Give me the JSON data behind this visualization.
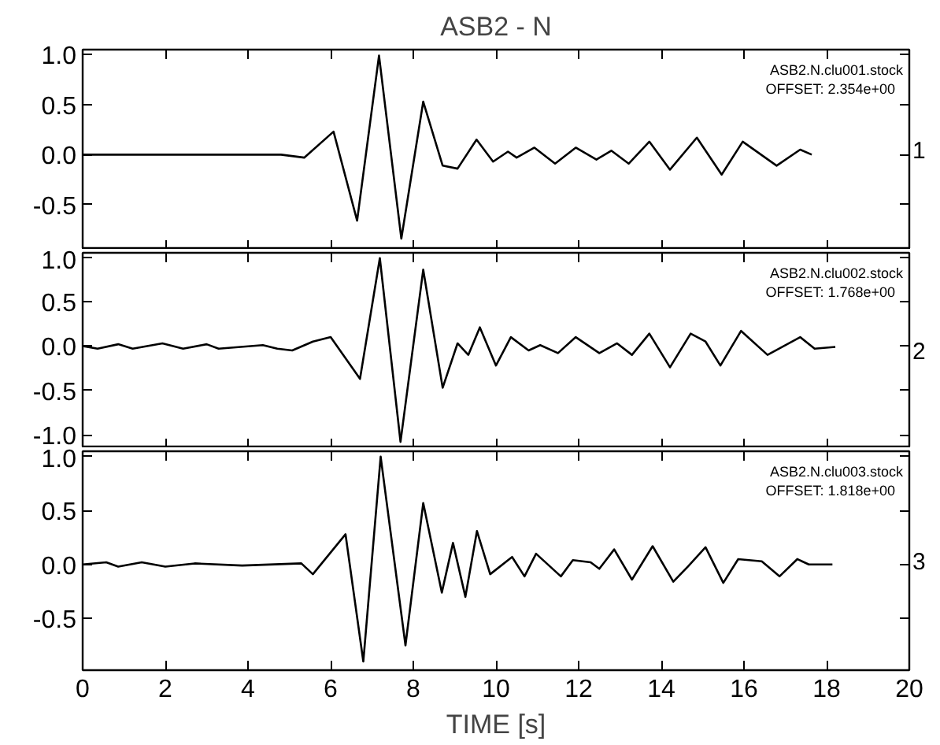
{
  "chart_data": [
    {
      "type": "line",
      "title": "ASB2 - N",
      "xlim": [
        0,
        20
      ],
      "ylim": [
        -0.95,
        1.05
      ],
      "xticks": [
        0,
        2,
        4,
        6,
        8,
        10,
        12,
        14,
        16,
        18,
        20
      ],
      "yticks": [
        {
          "value": -0.5,
          "label": "-0.5"
        },
        {
          "value": 0,
          "label": "0.0"
        },
        {
          "value": 0.5,
          "label": "0.5"
        },
        {
          "value": 1,
          "label": "1.0"
        }
      ],
      "tick_labels": "y",
      "grid": false,
      "annotations": [
        "ASB2.N.clu001.stock",
        "OFFSET:   2.354e+00",
        "1"
      ],
      "series": [
        {
          "color": "#000000",
          "x": [
            0,
            4.8,
            5.36,
            6.07,
            6.64,
            7.17,
            7.71,
            8.24,
            8.71,
            9.07,
            9.53,
            9.93,
            10.29,
            10.5,
            10.93,
            11.43,
            11.93,
            12.43,
            12.79,
            13.21,
            13.71,
            14.21,
            14.86,
            15.46,
            15.97,
            16.79,
            17.36,
            17.64
          ],
          "values": [
            0,
            0,
            -0.03,
            0.23,
            -0.66,
            0.99,
            -0.84,
            0.53,
            -0.11,
            -0.14,
            0.15,
            -0.07,
            0.03,
            -0.03,
            0.07,
            -0.09,
            0.07,
            -0.05,
            0.04,
            -0.09,
            0.13,
            -0.15,
            0.17,
            -0.2,
            0.13,
            -0.11,
            0.05,
            0
          ]
        }
      ]
    },
    {
      "type": "line",
      "xlim": [
        0,
        20
      ],
      "ylim": [
        -1.15,
        1.05
      ],
      "xticks": [
        0,
        2,
        4,
        6,
        8,
        10,
        12,
        14,
        16,
        18,
        20
      ],
      "yticks": [
        {
          "value": -1,
          "label": "-1.0"
        },
        {
          "value": -0.5,
          "label": "-0.5"
        },
        {
          "value": 0,
          "label": "0.0"
        },
        {
          "value": 0.5,
          "label": "0.5"
        },
        {
          "value": 1,
          "label": "1.0"
        }
      ],
      "tick_labels": "y",
      "grid": false,
      "annotations": [
        "ASB2.N.clu002.stock",
        "OFFSET:   1.768e+00",
        "2"
      ],
      "series": [
        {
          "color": "#000000",
          "x": [
            0,
            0.36,
            0.86,
            1.21,
            1.93,
            2.43,
            3.0,
            3.29,
            4.36,
            4.71,
            5.07,
            5.57,
            6.0,
            6.71,
            7.19,
            7.69,
            8.24,
            8.71,
            9.07,
            9.33,
            9.61,
            10.0,
            10.36,
            10.79,
            11.07,
            11.5,
            11.93,
            12.5,
            12.93,
            13.29,
            13.71,
            14.21,
            14.71,
            15.07,
            15.43,
            15.93,
            16.57,
            17.36,
            17.71,
            18.21
          ],
          "values": [
            0,
            -0.03,
            0.02,
            -0.03,
            0.03,
            -0.03,
            0.02,
            -0.03,
            0.01,
            -0.03,
            -0.05,
            0.05,
            0.1,
            -0.37,
            0.99,
            -1.08,
            0.86,
            -0.47,
            0.03,
            -0.1,
            0.21,
            -0.22,
            0.1,
            -0.05,
            0.01,
            -0.08,
            0.1,
            -0.08,
            0.03,
            -0.1,
            0.14,
            -0.24,
            0.14,
            0.05,
            -0.22,
            0.17,
            -0.1,
            0.1,
            -0.03,
            -0.01
          ]
        }
      ]
    },
    {
      "type": "line",
      "xlabel": "TIME [s]",
      "xlim": [
        0,
        20
      ],
      "ylim": [
        -0.98,
        1.05
      ],
      "xticks": [
        0,
        2,
        4,
        6,
        8,
        10,
        12,
        14,
        16,
        18,
        20
      ],
      "yticks": [
        {
          "value": -0.5,
          "label": "-0.5"
        },
        {
          "value": 0,
          "label": "0.0"
        },
        {
          "value": 0.5,
          "label": "0.5"
        },
        {
          "value": 1,
          "label": "1.0"
        }
      ],
      "grid": false,
      "annotations": [
        "ASB2.N.clu003.stock",
        "OFFSET:   1.818e+00",
        "3"
      ],
      "series": [
        {
          "color": "#000000",
          "x": [
            0,
            0.57,
            0.86,
            1.43,
            2.0,
            2.71,
            3.86,
            5.29,
            5.57,
            6.36,
            6.79,
            7.21,
            7.81,
            8.24,
            8.69,
            8.96,
            9.26,
            9.54,
            9.86,
            10.39,
            10.69,
            10.97,
            11.57,
            11.86,
            12.29,
            12.5,
            12.86,
            13.29,
            13.79,
            14.29,
            14.64,
            15.07,
            15.5,
            15.86,
            16.43,
            16.86,
            17.29,
            17.57,
            18.14
          ],
          "values": [
            0,
            0.02,
            -0.02,
            0.02,
            -0.02,
            0.01,
            -0.01,
            0.01,
            -0.09,
            0.28,
            -0.9,
            1.0,
            -0.75,
            0.57,
            -0.26,
            0.2,
            -0.3,
            0.31,
            -0.09,
            0.07,
            -0.11,
            0.1,
            -0.11,
            0.04,
            0.02,
            -0.04,
            0.14,
            -0.14,
            0.17,
            -0.16,
            -0.02,
            0.16,
            -0.17,
            0.05,
            0.03,
            -0.11,
            0.05,
            0,
            0
          ]
        }
      ]
    }
  ]
}
